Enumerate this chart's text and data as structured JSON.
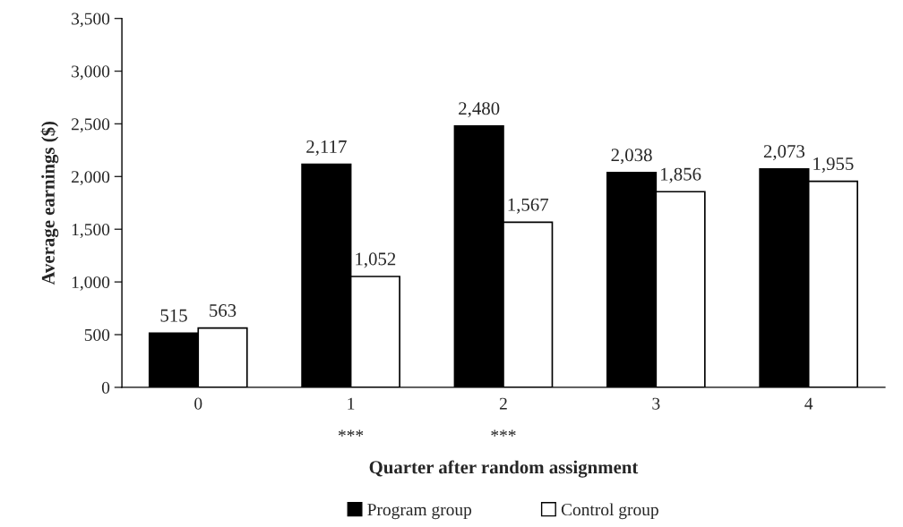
{
  "chart_data": {
    "type": "bar",
    "xlabel": "Quarter after random assignment",
    "ylabel": "Average earnings ($)",
    "categories": [
      "0",
      "1",
      "2",
      "3",
      "4"
    ],
    "series": [
      {
        "name": "Program group",
        "color": "#000000",
        "values": [
          515,
          2117,
          2480,
          2038,
          2073
        ],
        "value_labels": [
          "515",
          "2,117",
          "2,480",
          "2,038",
          "2,073"
        ]
      },
      {
        "name": "Control group",
        "color": "#ffffff",
        "values": [
          563,
          1052,
          1567,
          1856,
          1955
        ],
        "value_labels": [
          "563",
          "1,052",
          "1,567",
          "1,856",
          "1,955"
        ]
      }
    ],
    "ylim": [
      0,
      3500
    ],
    "yticks": [
      0,
      {
        "value": 500,
        "label": "500"
      },
      {
        "value": 1000,
        "label": "1,000"
      },
      {
        "value": 1500,
        "label": "1,500"
      },
      {
        "value": 2000,
        "label": "2,000"
      },
      {
        "value": 2500,
        "label": "2,500"
      },
      {
        "value": 3000,
        "label": "3,000"
      },
      {
        "value": 3500,
        "label": "3,500"
      }
    ],
    "annotations": [
      "***",
      "***"
    ],
    "grid": false,
    "legend": "bottom"
  }
}
